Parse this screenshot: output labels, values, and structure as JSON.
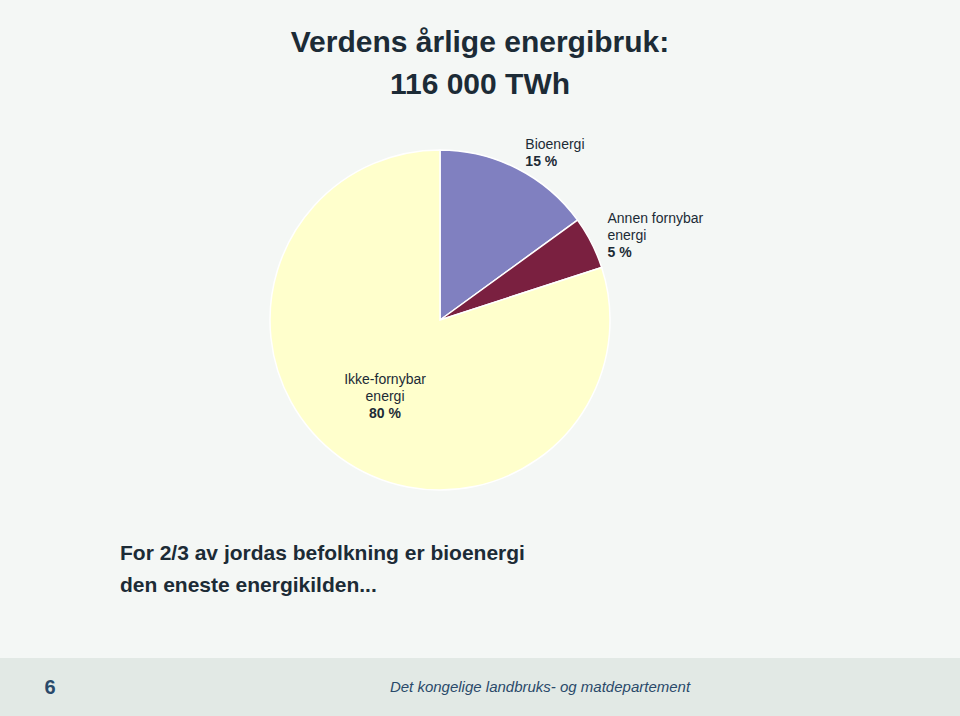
{
  "chart_data": {
    "type": "pie",
    "title": "Verdens årlige energibruk:",
    "subtitle": "116 000 TWh",
    "categories": [
      "Bioenergi",
      "Annen fornybar\nenergi",
      "Ikke-fornybar\nenergi"
    ],
    "values": [
      15,
      5,
      80
    ],
    "value_labels": [
      "15 %",
      "5 %",
      "80 %"
    ],
    "colors": [
      "#8080c0",
      "#7a2040",
      "#ffffcc"
    ],
    "data_labels": true,
    "annotations": [
      "For 2/3 av jordas befolkning er bioenergi",
      "den eneste energikilden...",
      "Det kongelige landbruks- og matdepartement",
      "6"
    ]
  }
}
